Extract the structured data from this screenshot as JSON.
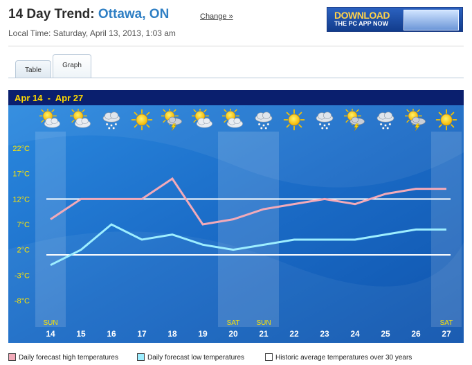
{
  "header": {
    "title_prefix": "14 Day Trend: ",
    "city": "Ottawa, ON",
    "change_link": "Change »",
    "local_time": "Local Time: Saturday, April 13, 2013, 1:03 am"
  },
  "ad": {
    "headline": "DOWNLOAD",
    "subline": "THE PC APP NOW"
  },
  "tabs": [
    {
      "label": "Table",
      "selected": false
    },
    {
      "label": "Graph",
      "selected": true
    }
  ],
  "chart_data": {
    "type": "line",
    "title": "Apr 14  -  Apr 27",
    "days": [
      "14",
      "15",
      "16",
      "17",
      "18",
      "19",
      "20",
      "21",
      "22",
      "23",
      "24",
      "25",
      "26",
      "27"
    ],
    "weekday_labels": [
      "SUN",
      "",
      "",
      "",
      "",
      "",
      "SAT",
      "SUN",
      "",
      "",
      "",
      "",
      "",
      "SAT"
    ],
    "weekend_shaded": [
      true,
      false,
      false,
      false,
      false,
      false,
      true,
      true,
      false,
      false,
      false,
      false,
      false,
      true
    ],
    "icons": [
      "sun-cloud-icon",
      "sun-cloud-icon",
      "snow-cloud-icon",
      "sun-icon",
      "sun-storm-icon",
      "sun-cloud-icon",
      "sun-cloud-icon",
      "snow-cloud-icon",
      "sun-icon",
      "snow-cloud-icon",
      "sun-storm-icon",
      "snow-cloud-icon",
      "sun-storm-icon",
      "sun-icon"
    ],
    "y_ticks": [
      "22°C",
      "17°C",
      "12°C",
      "7°C",
      "2°C",
      "-3°C",
      "-8°C"
    ],
    "y_tick_values": [
      22,
      17,
      12,
      7,
      2,
      -3,
      -8
    ],
    "ylim": [
      -11,
      25
    ],
    "series": [
      {
        "name": "Daily forecast high temperatures",
        "values": [
          8,
          12,
          12,
          12,
          16,
          7,
          8,
          10,
          11,
          12,
          11,
          13,
          14,
          14
        ],
        "color": "#f2aab9"
      },
      {
        "name": "Daily forecast low temperatures",
        "values": [
          -1,
          2,
          7,
          4,
          5,
          3,
          2,
          3,
          4,
          4,
          4,
          5,
          6,
          6
        ],
        "color": "#9deeff"
      }
    ],
    "historic": {
      "name": "Historic average temperatures over 30 years",
      "high": 12,
      "low": 1,
      "color": "#ffffff"
    },
    "colors": {
      "title_bar": "#0a1f6e",
      "title_text": "#ffd800",
      "background": "#1d6fc9"
    }
  }
}
